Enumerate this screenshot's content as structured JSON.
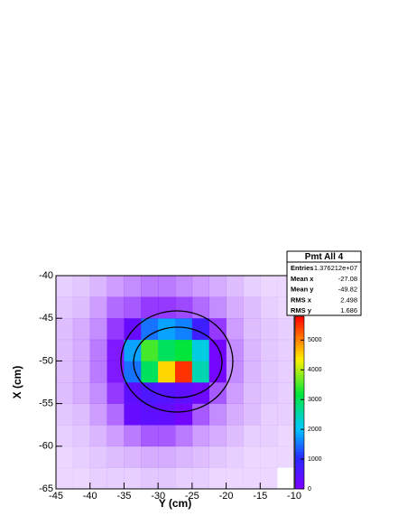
{
  "chart_data": {
    "type": "heatmap",
    "x_label": "Y (cm)",
    "y_label": "X (cm)",
    "xlim": [
      -45,
      -10
    ],
    "xticks": [
      -45,
      -40,
      -35,
      -30,
      -25,
      -20,
      -15,
      -10
    ],
    "ylim": [
      -65,
      -40
    ],
    "yticks": [
      -65,
      -60,
      -55,
      -50,
      -45,
      -40
    ],
    "zlim": [
      0,
      5800
    ],
    "zticks": [
      0,
      1000,
      2000,
      3000,
      4000,
      5000
    ],
    "xbins": [
      -45,
      -42.5,
      -40,
      -37.5,
      -35,
      -32.5,
      -30,
      -27.5,
      -25,
      -22.5,
      -20,
      -17.5,
      -15,
      -12.5,
      -10
    ],
    "ybins": [
      -65,
      -62.5,
      -60,
      -57.5,
      -55,
      -52.5,
      -50,
      -47.5,
      -45,
      -42.5,
      -40
    ],
    "z": [
      [
        5,
        5,
        10,
        10,
        10,
        15,
        15,
        10,
        10,
        5,
        5,
        5,
        5,
        0
      ],
      [
        5,
        10,
        15,
        20,
        25,
        30,
        30,
        25,
        20,
        15,
        10,
        5,
        5,
        5
      ],
      [
        10,
        15,
        25,
        40,
        60,
        80,
        80,
        60,
        40,
        30,
        20,
        10,
        10,
        5
      ],
      [
        15,
        20,
        40,
        70,
        300,
        400,
        350,
        150,
        80,
        50,
        30,
        20,
        10,
        10
      ],
      [
        20,
        30,
        50,
        100,
        400,
        600,
        500,
        400,
        200,
        80,
        40,
        20,
        15,
        10
      ],
      [
        20,
        30,
        60,
        120,
        1500,
        3000,
        4500,
        5500,
        2500,
        150,
        50,
        25,
        15,
        10
      ],
      [
        20,
        30,
        60,
        120,
        1800,
        3500,
        3000,
        3200,
        2200,
        150,
        50,
        25,
        15,
        10
      ],
      [
        20,
        30,
        50,
        100,
        300,
        1500,
        1800,
        1600,
        800,
        100,
        40,
        20,
        15,
        10
      ],
      [
        15,
        20,
        40,
        70,
        80,
        100,
        100,
        90,
        70,
        50,
        30,
        20,
        10,
        5
      ],
      [
        10,
        15,
        25,
        40,
        50,
        60,
        60,
        50,
        40,
        30,
        20,
        10,
        5,
        5
      ]
    ],
    "stats": {
      "title": "Pmt All 4",
      "rows": [
        {
          "label": "Entries",
          "value": "1.376212e+07"
        },
        {
          "label": "Mean x",
          "value": "-27.08"
        },
        {
          "label": "Mean y",
          "value": "-49.82"
        },
        {
          "label": "RMS x",
          "value": "2.498"
        },
        {
          "label": "RMS y",
          "value": "1.686"
        }
      ]
    }
  }
}
